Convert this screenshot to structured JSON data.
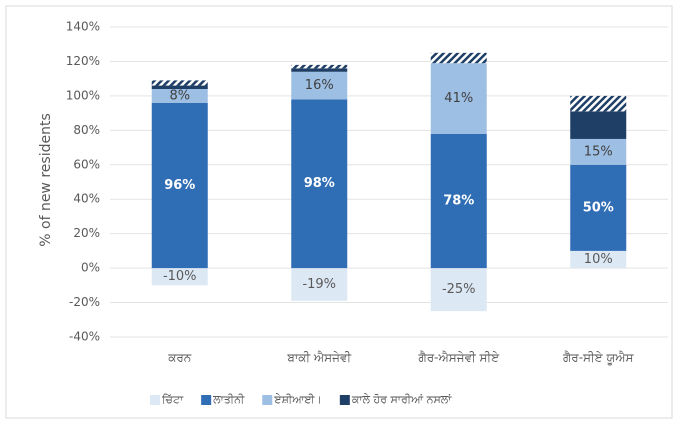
{
  "chart_data": {
    "type": "stacked-bar",
    "y_label": "% of new residents",
    "categories": [
      "ਕਰਨ",
      "ਬਾਕੀ ਐਸਜੇਵੀ",
      "ਗੈਰ-ਐਸਜੇਵੀ ਸੀਏ",
      "ਗੈਰ-ਸੀਏ ਯੂਐਸ"
    ],
    "series": [
      {
        "name": "ਚਿੱਟਾ",
        "color": "#dde8f5",
        "label_color": "#595959",
        "values": [
          -10,
          -19,
          -25,
          10
        ],
        "value_labels": [
          "-10%",
          "-19%",
          "-25%",
          "10%"
        ]
      },
      {
        "name": "ਲਾਤੀਨੀ",
        "color": "#2f6db5",
        "label_color": "#ffffff",
        "values": [
          96,
          98,
          78,
          50
        ],
        "value_labels": [
          "96%",
          "98%",
          "78%",
          "50%"
        ]
      },
      {
        "name": "ਏਸ਼ੀਆਈ।",
        "color": "#9dbfe3",
        "label_color": "#404040",
        "values": [
          8,
          16,
          41,
          15
        ],
        "value_labels": [
          "8%",
          "16%",
          "41%",
          "15%"
        ]
      },
      {
        "name": "ਕਾਲੇ ਹੋਰ ਸਾਰੀਆਂ ਨਸਲਾਂ",
        "color": "#1f3f66",
        "values": [
          2,
          2,
          0,
          16
        ]
      },
      {
        "color": "#1f3f66",
        "pattern": "hatch",
        "values": [
          3,
          2,
          6,
          9
        ]
      }
    ],
    "ylim": [
      -40,
      140
    ],
    "yticks": [
      {
        "value": -40,
        "label": "-40%"
      },
      {
        "value": -20,
        "label": "-20%"
      },
      {
        "value": 0,
        "label": "0%"
      },
      {
        "value": 20,
        "label": "20%"
      },
      {
        "value": 40,
        "label": "40%"
      },
      {
        "value": 60,
        "label": "60%"
      },
      {
        "value": 80,
        "label": "80%"
      },
      {
        "value": 100,
        "label": "100%"
      },
      {
        "value": 120,
        "label": "120%"
      },
      {
        "value": 140,
        "label": "140%"
      }
    ],
    "grid": true
  }
}
